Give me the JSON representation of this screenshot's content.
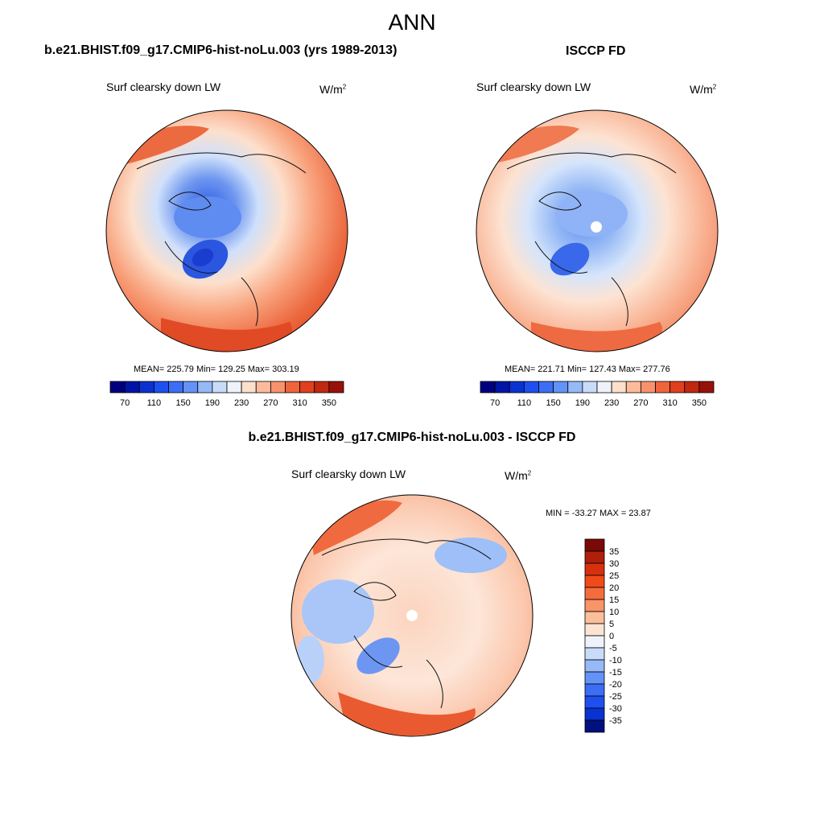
{
  "figure": {
    "title": "ANN"
  },
  "panels": [
    {
      "title": "b.e21.BHIST.f09_g17.CMIP6-hist-noLu.003 (yrs 1989-2013)",
      "variable": "Surf clearsky down LW",
      "units_base": "W/m",
      "units_exp": "2",
      "stats": "MEAN= 225.79  Min= 129.25  Max= 303.19"
    },
    {
      "title": "ISCCP FD",
      "variable": "Surf clearsky down LW",
      "units_base": "W/m",
      "units_exp": "2",
      "stats": "MEAN= 221.71  Min= 127.43  Max= 277.76"
    },
    {
      "title": "b.e21.BHIST.f09_g17.CMIP6-hist-noLu.003 - ISCCP FD",
      "variable": "Surf clearsky down LW",
      "units_base": "W/m",
      "units_exp": "2",
      "stats": "MIN = -33.27 MAX =  23.87"
    }
  ],
  "chart_data": [
    {
      "type": "heatmap",
      "projection": "north polar stereographic",
      "title": "b.e21.BHIST.f09_g17.CMIP6-hist-noLu.003 (yrs 1989-2013)",
      "variable": "Surf clearsky down LW",
      "units": "W/m2",
      "mean": 225.79,
      "min": 129.25,
      "max": 303.19,
      "colorbar": {
        "orientation": "horizontal",
        "levels": [
          70,
          90,
          110,
          130,
          150,
          170,
          190,
          210,
          230,
          250,
          270,
          290,
          310,
          330,
          350
        ],
        "tick_labels": [
          "70",
          "110",
          "150",
          "190",
          "230",
          "270",
          "310",
          "350"
        ],
        "colors": [
          "#00007f",
          "#0014a8",
          "#0a32d0",
          "#1e50f0",
          "#3c6ef5",
          "#6493f7",
          "#96b9f7",
          "#c8dcfa",
          "#eef3fb",
          "#fde0cc",
          "#fcbc9c",
          "#f8926c",
          "#f0643c",
          "#e0401e",
          "#c02810",
          "#961208"
        ]
      }
    },
    {
      "type": "heatmap",
      "projection": "north polar stereographic",
      "title": "ISCCP FD",
      "variable": "Surf clearsky down LW",
      "units": "W/m2",
      "mean": 221.71,
      "min": 127.43,
      "max": 277.76,
      "colorbar": {
        "orientation": "horizontal",
        "levels": [
          70,
          90,
          110,
          130,
          150,
          170,
          190,
          210,
          230,
          250,
          270,
          290,
          310,
          330,
          350
        ],
        "tick_labels": [
          "70",
          "110",
          "150",
          "190",
          "230",
          "270",
          "310",
          "350"
        ],
        "colors": [
          "#00007f",
          "#0014a8",
          "#0a32d0",
          "#1e50f0",
          "#3c6ef5",
          "#6493f7",
          "#96b9f7",
          "#c8dcfa",
          "#eef3fb",
          "#fde0cc",
          "#fcbc9c",
          "#f8926c",
          "#f0643c",
          "#e0401e",
          "#c02810",
          "#961208"
        ]
      }
    },
    {
      "type": "heatmap",
      "projection": "north polar stereographic",
      "title": "b.e21.BHIST.f09_g17.CMIP6-hist-noLu.003 - ISCCP FD",
      "variable": "Surf clearsky down LW",
      "units": "W/m2",
      "min": -33.27,
      "max": 23.87,
      "colorbar": {
        "orientation": "vertical",
        "levels": [
          35,
          30,
          25,
          20,
          15,
          10,
          5,
          0,
          -5,
          -10,
          -15,
          -20,
          -25,
          -30,
          -35
        ],
        "tick_labels": [
          "35",
          "30",
          "25",
          "20",
          "15",
          "10",
          "5",
          "0",
          "-5",
          "-10",
          "-15",
          "-20",
          "-25",
          "-30",
          "-35"
        ],
        "colors": [
          "#7a0a06",
          "#b01e0c",
          "#d8300e",
          "#f04a18",
          "#f46c3c",
          "#f89468",
          "#fbbf9c",
          "#fde4d2",
          "#eef3fb",
          "#c8dcfa",
          "#96b9f7",
          "#6493f7",
          "#3c6ef5",
          "#1e50f0",
          "#0a32d0",
          "#00107f"
        ]
      }
    }
  ]
}
